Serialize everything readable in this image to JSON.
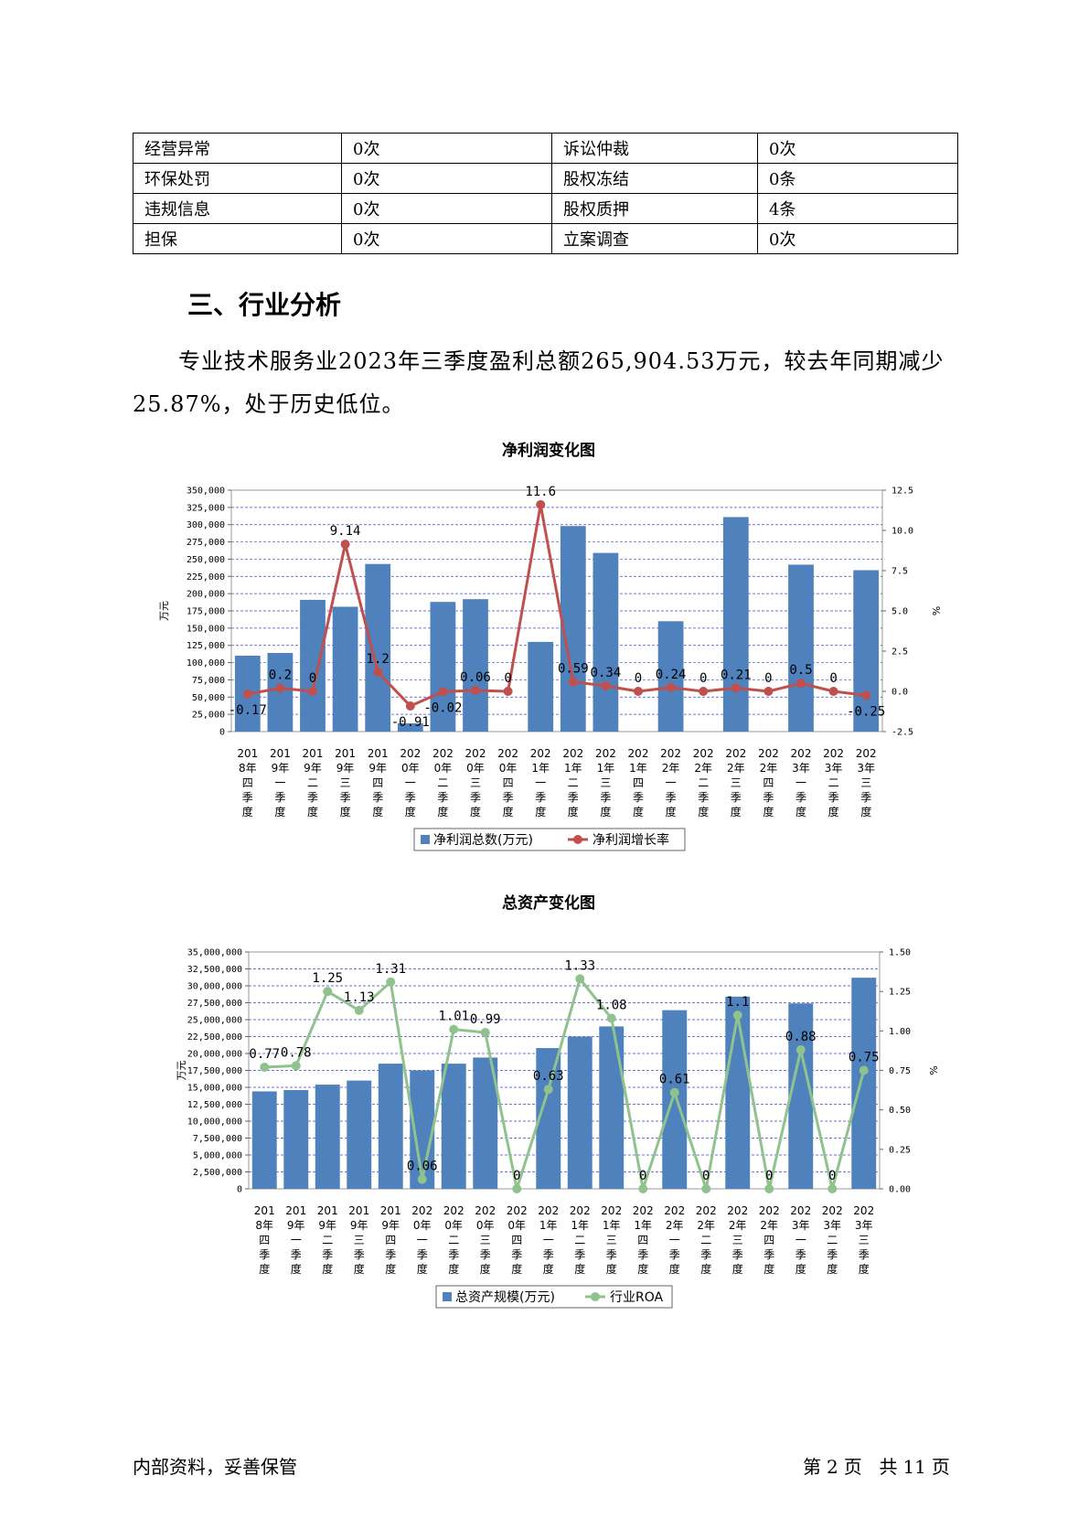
{
  "table": {
    "rows": [
      [
        "经营异常",
        "0次",
        "诉讼仲裁",
        "0次"
      ],
      [
        "环保处罚",
        "0次",
        "股权冻结",
        "0条"
      ],
      [
        "违规信息",
        "0次",
        "股权质押",
        "4条"
      ],
      [
        "担保",
        "0次",
        "立案调查",
        "0次"
      ]
    ]
  },
  "section": {
    "title": "三、行业分析",
    "paragraph": "专业技术服务业2023年三季度盈利总额265,904.53万元，较去年同期减少25.87%，处于历史低位。"
  },
  "footer": {
    "left": "内部资料，妥善保管",
    "page_label_1": "第",
    "page_num": "2",
    "page_label_2": "页",
    "total_label_1": "共",
    "total_num": "11",
    "total_label_2": "页"
  },
  "chart_data": [
    {
      "type": "bar+line",
      "title": "净利润变化图",
      "ylabel": "万元",
      "y2label": "%",
      "ylim": [
        0,
        350000
      ],
      "yticks": [
        "0",
        "25,000",
        "50,000",
        "75,000",
        "100,000",
        "125,000",
        "150,000",
        "175,000",
        "200,000",
        "225,000",
        "250,000",
        "275,000",
        "300,000",
        "325,000",
        "350,000"
      ],
      "y2lim": [
        -2.5,
        12.5
      ],
      "y2ticks": [
        "-2.5",
        "0.0",
        "2.5",
        "5.0",
        "7.5",
        "10.0",
        "12.5"
      ],
      "categories": [
        "2018年四季度",
        "2019年一季度",
        "2019年二季度",
        "2019年三季度",
        "2019年四季度",
        "2020年一季度",
        "2020年二季度",
        "2020年三季度",
        "2020年四季度",
        "2021年一季度",
        "2021年二季度",
        "2021年三季度",
        "2021年四季度",
        "2022年一季度",
        "2022年二季度",
        "2022年三季度",
        "2022年四季度",
        "2023年一季度",
        "2023年二季度",
        "2023年三季度"
      ],
      "legend": [
        "净利润总数(万元)",
        "净利润增长率"
      ],
      "colors": {
        "bar": "#4f81bd",
        "line": "#c0504d",
        "grid": "#4444cc"
      },
      "series": [
        {
          "name": "净利润总数(万元)",
          "kind": "bar",
          "values": [
            110000,
            114000,
            191000,
            181000,
            243000,
            12000,
            188000,
            192000,
            0,
            130000,
            298000,
            259000,
            0,
            160000,
            0,
            311000,
            0,
            242000,
            0,
            234000
          ]
        },
        {
          "name": "净利润增长率",
          "kind": "line",
          "values": [
            -0.17,
            0.2,
            0,
            9.14,
            1.2,
            -0.91,
            -0.02,
            0.06,
            0,
            11.6,
            0.59,
            0.34,
            0,
            0.24,
            0,
            0.21,
            0,
            0.5,
            0,
            -0.25
          ],
          "labels": [
            "-0.17",
            "0.2",
            "0",
            "9.14",
            "1.2",
            "-0.91",
            "-0.02",
            "0.06",
            "0",
            "11.6",
            "0.59",
            "0.34",
            "0",
            "0.24",
            "0",
            "0.21",
            "0",
            "0.5",
            "0",
            "-0.25"
          ]
        }
      ]
    },
    {
      "type": "bar+line",
      "title": "总资产变化图",
      "ylabel": "万元",
      "y2label": "%",
      "ylim": [
        0,
        35000000
      ],
      "yticks": [
        "0",
        "2,500,000",
        "5,000,000",
        "7,500,000",
        "10,000,000",
        "12,500,000",
        "15,000,000",
        "17,500,000",
        "20,000,000",
        "22,500,000",
        "25,000,000",
        "27,500,000",
        "30,000,000",
        "32,500,000",
        "35,000,000"
      ],
      "y2lim": [
        0,
        1.5
      ],
      "y2ticks": [
        "0.00",
        "0.25",
        "0.50",
        "0.75",
        "1.00",
        "1.25",
        "1.50"
      ],
      "categories": [
        "2018年四季度",
        "2019年一季度",
        "2019年二季度",
        "2019年三季度",
        "2019年四季度",
        "2020年一季度",
        "2020年二季度",
        "2020年三季度",
        "2020年四季度",
        "2021年一季度",
        "2021年二季度",
        "2021年三季度",
        "2021年四季度",
        "2022年一季度",
        "2022年二季度",
        "2022年三季度",
        "2022年四季度",
        "2023年一季度",
        "2023年二季度",
        "2023年三季度"
      ],
      "legend": [
        "总资产规模(万元)",
        "行业ROA"
      ],
      "colors": {
        "bar": "#4f81bd",
        "line": "#8fc28c",
        "grid": "#4444cc"
      },
      "series": [
        {
          "name": "总资产规模(万元)",
          "kind": "bar",
          "values": [
            14400000,
            14600000,
            15400000,
            16000000,
            18500000,
            17500000,
            18500000,
            19400000,
            0,
            20800000,
            22500000,
            24000000,
            0,
            26400000,
            0,
            28400000,
            0,
            27400000,
            0,
            31200000
          ]
        },
        {
          "name": "行业ROA",
          "kind": "line",
          "values": [
            0.77,
            0.78,
            1.25,
            1.13,
            1.31,
            0.06,
            1.01,
            0.99,
            0,
            0.63,
            1.33,
            1.08,
            0,
            0.61,
            0,
            1.1,
            0,
            0.88,
            0,
            0.75
          ],
          "labels": [
            "0.77",
            "0.78",
            "1.25",
            "1.13",
            "1.31",
            "0.06",
            "1.01",
            "0.99",
            "0",
            "0.63",
            "1.33",
            "1.08",
            "0",
            "0.61",
            "0",
            "1.1",
            "0",
            "0.88",
            "0",
            "0.75"
          ]
        }
      ]
    }
  ]
}
